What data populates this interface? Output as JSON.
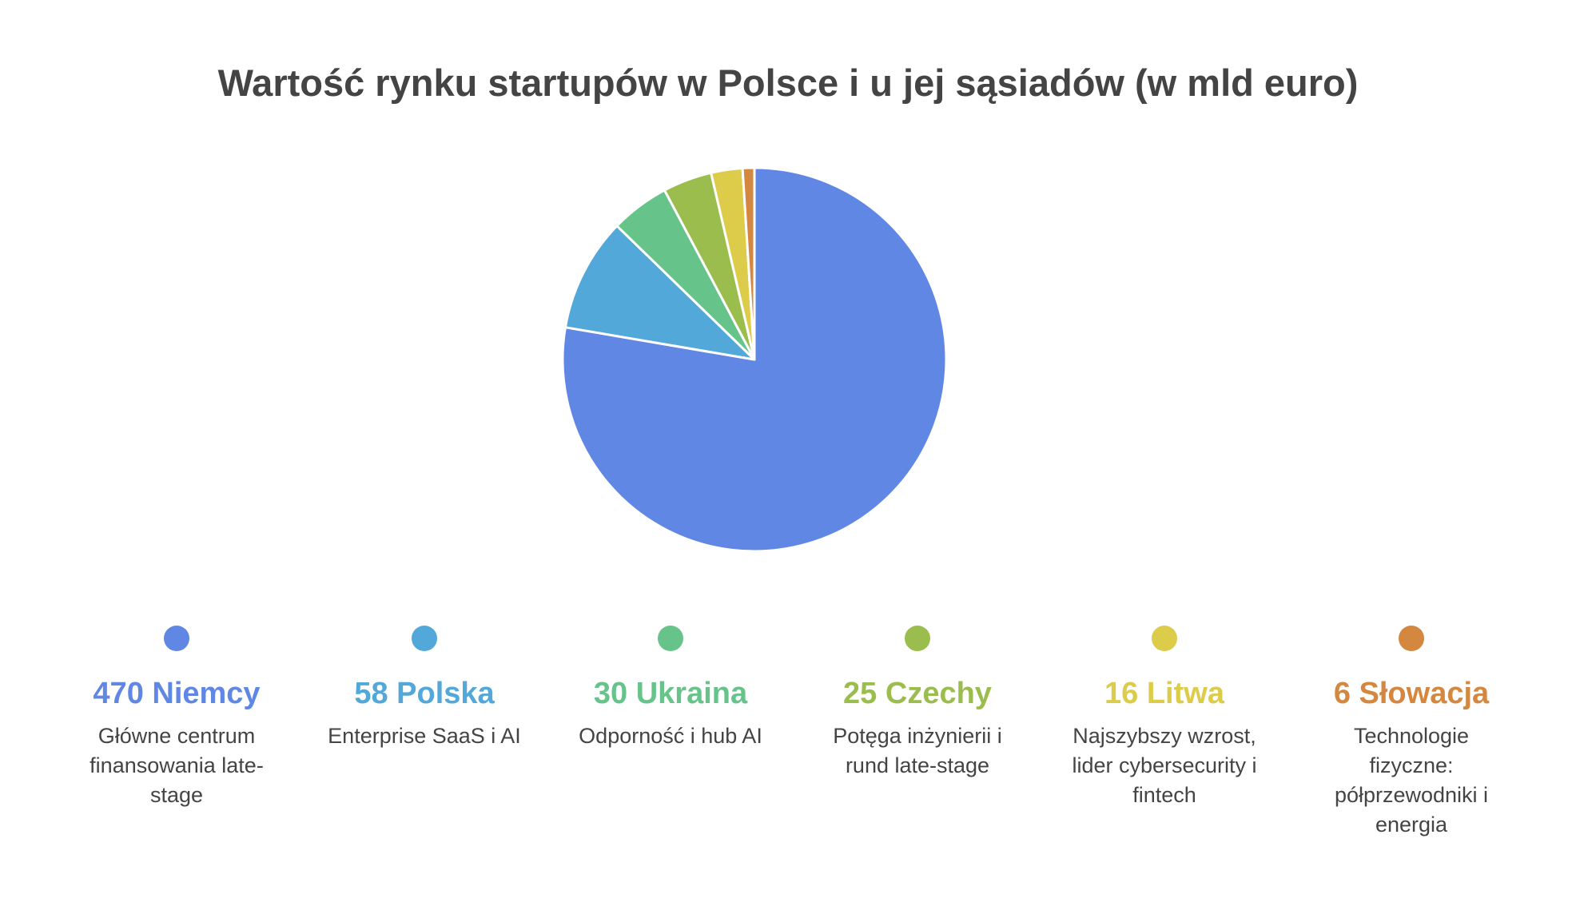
{
  "chart_data": {
    "type": "pie",
    "title": "Wartość rynku startupów w Polsce i u jej sąsiadów (w mld euro)",
    "start_angle": "top",
    "direction": "clockwise",
    "slices": [
      {
        "label": "Niemcy",
        "value": 470,
        "heading": "470 Niemcy",
        "description": "Główne centrum finansowania late-stage",
        "color": "#5f87e3"
      },
      {
        "label": "Polska",
        "value": 58,
        "heading": "58 Polska",
        "description": "Enterprise SaaS i AI",
        "color": "#52a8d8"
      },
      {
        "label": "Ukraina",
        "value": 30,
        "heading": "30 Ukraina",
        "description": "Odporność i hub AI",
        "color": "#66c38a"
      },
      {
        "label": "Czechy",
        "value": 25,
        "heading": "25 Czechy",
        "description": "Potęga inżynierii i rund late-stage",
        "color": "#9bbd4e"
      },
      {
        "label": "Litwa",
        "value": 16,
        "heading": "16 Litwa",
        "description": "Najszybszy wzrost, lider cybersecurity i fintech",
        "color": "#dccc4a"
      },
      {
        "label": "Słowacja",
        "value": 6,
        "heading": "6 Słowacja",
        "description": "Technologie fizyczne: półprzewodniki i energia",
        "color": "#d4873f"
      }
    ],
    "legend": "bottom"
  }
}
